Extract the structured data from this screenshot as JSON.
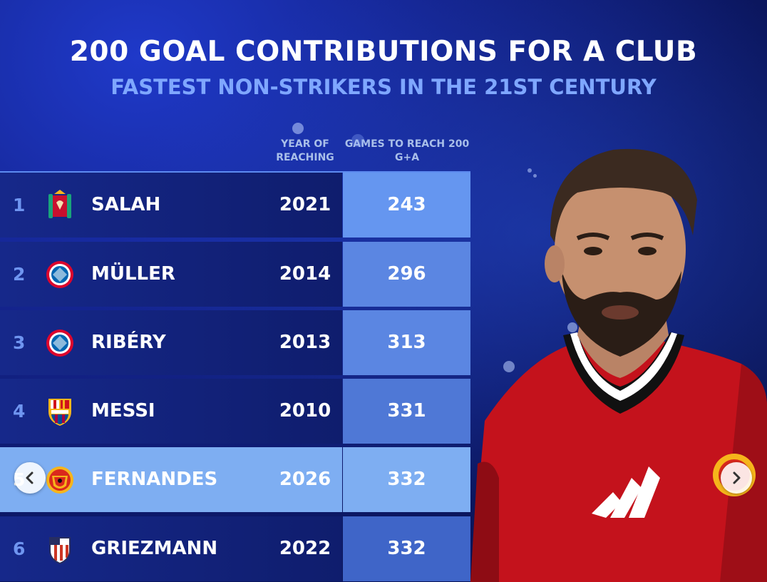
{
  "header": {
    "title": "200 GOAL CONTRIBUTIONS FOR A CLUB",
    "subtitle": "FASTEST NON-STRIKERS IN THE 21ST CENTURY"
  },
  "columns": {
    "year": "YEAR OF REACHING",
    "games": "GAMES TO REACH 200 G+A"
  },
  "rows": [
    {
      "rank": "1",
      "name": "SALAH",
      "year": "2021",
      "games": "243",
      "crest": "liverpool-crest-icon",
      "highlight": false,
      "color": "#4f7fe6"
    },
    {
      "rank": "2",
      "name": "MÜLLER",
      "year": "2014",
      "games": "296",
      "crest": "bayern-crest-icon",
      "highlight": false,
      "color": "#5b86e2"
    },
    {
      "rank": "3",
      "name": "RIBÉRY",
      "year": "2013",
      "games": "313",
      "crest": "bayern-crest-icon",
      "highlight": false,
      "color": "#5983df"
    },
    {
      "rank": "4",
      "name": "MESSI",
      "year": "2010",
      "games": "331",
      "crest": "barcelona-crest-icon",
      "highlight": false,
      "color": "#4f78d6"
    },
    {
      "rank": "5",
      "name": "FERNANDES",
      "year": "2026",
      "games": "332",
      "crest": "man-united-crest-icon",
      "highlight": true,
      "color": "#7eaef2"
    },
    {
      "rank": "6",
      "name": "GRIEZMANN",
      "year": "2022",
      "games": "332",
      "crest": "atletico-crest-icon",
      "highlight": false,
      "color": "#3f65c8"
    }
  ],
  "navigation": {
    "prev_icon": "chevron-left-icon",
    "next_icon": "chevron-right-icon"
  },
  "colors": {
    "highlight": "#7eaef2",
    "subtitle": "#7fa7ff",
    "games_cell": "#5b86e2"
  }
}
